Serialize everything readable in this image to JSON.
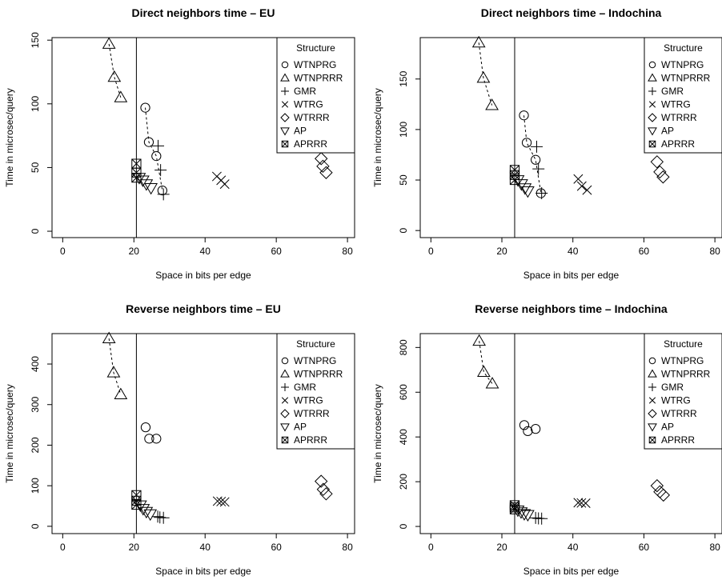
{
  "legend_title": "Structure",
  "legend_items": [
    {
      "label": "WTNPRG",
      "symbol": "circle"
    },
    {
      "label": "WTNPRRR",
      "symbol": "triangle-up"
    },
    {
      "label": "GMR",
      "symbol": "plus"
    },
    {
      "label": "WTRG",
      "symbol": "cross"
    },
    {
      "label": "WTRRR",
      "symbol": "diamond"
    },
    {
      "label": "AP",
      "symbol": "triangle-down"
    },
    {
      "label": "APRRR",
      "symbol": "boxed-x"
    }
  ],
  "chart_data": [
    {
      "type": "scatter",
      "title": "Direct neighbors time – EU",
      "xlabel": "Space in bits per edge",
      "ylabel": "Time in microsec/query",
      "xlim": [
        -3,
        82
      ],
      "ylim": [
        -5,
        152
      ],
      "xticks": [
        0,
        20,
        40,
        60,
        80
      ],
      "yticks": [
        0,
        50,
        100,
        150
      ],
      "vline": 20.7,
      "legend_position": "top-right",
      "series": [
        {
          "name": "WTNPRG",
          "connected": true,
          "points": [
            [
              23.2,
              97
            ],
            [
              24.2,
              70
            ],
            [
              26.3,
              59
            ],
            [
              28.0,
              32
            ]
          ]
        },
        {
          "name": "WTNPRRR",
          "connected": true,
          "points": [
            [
              13.0,
              147
            ],
            [
              14.5,
              121
            ],
            [
              16.3,
              105
            ]
          ]
        },
        {
          "name": "GMR",
          "points": [
            [
              26.8,
              67
            ],
            [
              27.5,
              48
            ],
            [
              28.3,
              29
            ]
          ]
        },
        {
          "name": "WTRG",
          "points": [
            [
              43.3,
              43
            ],
            [
              44.5,
              40
            ],
            [
              45.5,
              37
            ]
          ]
        },
        {
          "name": "WTRRR",
          "points": [
            [
              72.6,
              57
            ],
            [
              73.1,
              51
            ],
            [
              74.0,
              46
            ]
          ]
        },
        {
          "name": "AP",
          "points": [
            [
              21.5,
              42
            ],
            [
              22.5,
              40
            ],
            [
              23.5,
              37
            ],
            [
              24.8,
              34
            ]
          ]
        },
        {
          "name": "APRRR",
          "points": [
            [
              20.7,
              53
            ],
            [
              20.7,
              46
            ],
            [
              20.7,
              42
            ]
          ]
        }
      ]
    },
    {
      "type": "scatter",
      "title": "Direct neighbors time – Indochina",
      "xlabel": "Space in bits per edge",
      "ylabel": "Time in microsec/query",
      "xlim": [
        -3,
        82
      ],
      "ylim": [
        -7,
        191
      ],
      "xticks": [
        0,
        20,
        40,
        60,
        80
      ],
      "yticks": [
        0,
        50,
        100,
        150
      ],
      "vline": 23.6,
      "legend_position": "top-right",
      "series": [
        {
          "name": "WTNPRG",
          "connected": true,
          "points": [
            [
              26.2,
              114
            ],
            [
              27.0,
              87
            ],
            [
              29.5,
              70
            ],
            [
              31.0,
              37
            ]
          ]
        },
        {
          "name": "WTNPRRR",
          "connected": true,
          "points": [
            [
              13.5,
              186
            ],
            [
              14.8,
              151
            ],
            [
              17.2,
              124
            ]
          ]
        },
        {
          "name": "GMR",
          "points": [
            [
              29.8,
              83
            ],
            [
              30.3,
              61
            ],
            [
              31.2,
              37
            ]
          ]
        },
        {
          "name": "WTRG",
          "points": [
            [
              41.5,
              51
            ],
            [
              42.5,
              44
            ],
            [
              44.0,
              40
            ]
          ]
        },
        {
          "name": "WTRRR",
          "points": [
            [
              63.7,
              68
            ],
            [
              64.5,
              58
            ],
            [
              65.4,
              53
            ]
          ]
        },
        {
          "name": "AP",
          "points": [
            [
              24.5,
              50
            ],
            [
              25.5,
              46
            ],
            [
              26.5,
              42
            ],
            [
              27.3,
              39
            ]
          ]
        },
        {
          "name": "APRRR",
          "points": [
            [
              23.6,
              60
            ],
            [
              23.6,
              55
            ],
            [
              23.6,
              50
            ]
          ]
        }
      ]
    },
    {
      "type": "scatter",
      "title": "Reverse neighbors time – EU",
      "xlabel": "Space in bits per edge",
      "ylabel": "Time in microsec/query",
      "xlim": [
        -3,
        82
      ],
      "ylim": [
        -18,
        475
      ],
      "xticks": [
        0,
        20,
        40,
        60,
        80
      ],
      "yticks": [
        0,
        100,
        200,
        300,
        400
      ],
      "vline": 20.7,
      "legend_position": "top-right",
      "series": [
        {
          "name": "WTNPRG",
          "points": [
            [
              23.3,
              244
            ],
            [
              24.3,
              216
            ],
            [
              26.3,
              216
            ]
          ]
        },
        {
          "name": "WTNPRRR",
          "connected": true,
          "points": [
            [
              13.0,
              463
            ],
            [
              14.3,
              379
            ],
            [
              16.3,
              325
            ]
          ]
        },
        {
          "name": "GMR",
          "points": [
            [
              26.7,
              24
            ],
            [
              27.3,
              22
            ],
            [
              28.3,
              21
            ]
          ]
        },
        {
          "name": "WTRG",
          "points": [
            [
              43.5,
              62
            ],
            [
              44.5,
              61
            ],
            [
              45.5,
              60
            ]
          ]
        },
        {
          "name": "WTRRR",
          "points": [
            [
              72.6,
              111
            ],
            [
              73.2,
              91
            ],
            [
              74.0,
              80
            ]
          ]
        },
        {
          "name": "AP",
          "points": [
            [
              21.8,
              52
            ],
            [
              22.6,
              43
            ],
            [
              23.5,
              36
            ],
            [
              24.6,
              30
            ]
          ]
        },
        {
          "name": "APRRR",
          "points": [
            [
              20.7,
              77
            ],
            [
              20.7,
              63
            ],
            [
              20.7,
              53
            ]
          ]
        }
      ]
    },
    {
      "type": "scatter",
      "title": "Reverse neighbors time – Indochina",
      "xlabel": "Space in bits per edge",
      "ylabel": "Time in microsec/query",
      "xlim": [
        -3,
        82
      ],
      "ylim": [
        -32,
        862
      ],
      "xticks": [
        0,
        20,
        40,
        60,
        80
      ],
      "yticks": [
        0,
        200,
        400,
        600,
        800
      ],
      "vline": 23.6,
      "legend_position": "top-right",
      "series": [
        {
          "name": "WTNPRG",
          "points": [
            [
              26.3,
              453
            ],
            [
              27.3,
              426
            ],
            [
              29.5,
              436
            ]
          ]
        },
        {
          "name": "WTNPRRR",
          "connected": true,
          "points": [
            [
              13.6,
              829
            ],
            [
              14.9,
              690
            ],
            [
              17.3,
              638
            ]
          ]
        },
        {
          "name": "GMR",
          "points": [
            [
              29.5,
              38
            ],
            [
              30.3,
              36
            ],
            [
              31.2,
              35
            ]
          ]
        },
        {
          "name": "WTRG",
          "points": [
            [
              41.5,
              106
            ],
            [
              42.4,
              105
            ],
            [
              43.6,
              104
            ]
          ]
        },
        {
          "name": "WTRRR",
          "points": [
            [
              63.7,
              182
            ],
            [
              64.5,
              155
            ],
            [
              65.5,
              140
            ]
          ]
        },
        {
          "name": "AP",
          "points": [
            [
              24.5,
              72
            ],
            [
              25.4,
              64
            ],
            [
              26.3,
              56
            ],
            [
              27.3,
              52
            ]
          ]
        },
        {
          "name": "APRRR",
          "points": [
            [
              23.6,
              95
            ],
            [
              23.6,
              85
            ],
            [
              23.6,
              76
            ]
          ]
        }
      ]
    }
  ]
}
